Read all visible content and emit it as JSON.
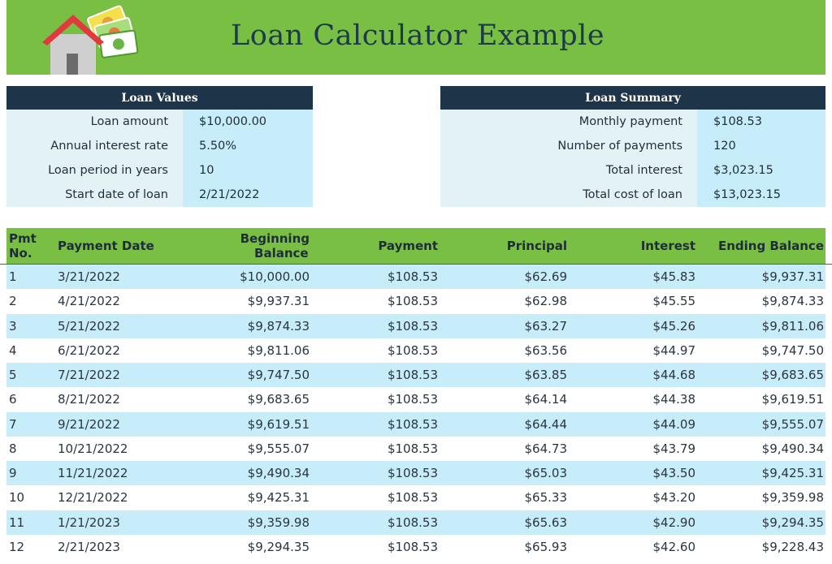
{
  "title": "Loan Calculator Example",
  "colors": {
    "banner_green": "#78bf43",
    "navy_header": "#1e3448",
    "row_blue": "#c7ecfa",
    "label_bg": "#e3f3f5"
  },
  "loan_values": {
    "heading": "Loan Values",
    "rows": [
      {
        "label": "Loan amount",
        "value": "$10,000.00"
      },
      {
        "label": "Annual interest rate",
        "value": "5.50%"
      },
      {
        "label": "Loan period in years",
        "value": "10"
      },
      {
        "label": "Start date of loan",
        "value": "2/21/2022"
      }
    ]
  },
  "loan_summary": {
    "heading": "Loan Summary",
    "rows": [
      {
        "label": "Monthly payment",
        "value": "$108.53"
      },
      {
        "label": "Number of payments",
        "value": "120"
      },
      {
        "label": "Total interest",
        "value": "$3,023.15"
      },
      {
        "label": "Total cost of loan",
        "value": "$13,023.15"
      }
    ]
  },
  "table": {
    "headers": {
      "pmt_no_1": "Pmt",
      "pmt_no_2": "No.",
      "payment_date": "Payment Date",
      "beginning_balance_1": "Beginning",
      "beginning_balance_2": "Balance",
      "payment": "Payment",
      "principal": "Principal",
      "interest": "Interest",
      "ending_balance": "Ending Balance"
    },
    "rows": [
      [
        "1",
        "3/21/2022",
        "$10,000.00",
        "$108.53",
        "$62.69",
        "$45.83",
        "$9,937.31"
      ],
      [
        "2",
        "4/21/2022",
        "$9,937.31",
        "$108.53",
        "$62.98",
        "$45.55",
        "$9,874.33"
      ],
      [
        "3",
        "5/21/2022",
        "$9,874.33",
        "$108.53",
        "$63.27",
        "$45.26",
        "$9,811.06"
      ],
      [
        "4",
        "6/21/2022",
        "$9,811.06",
        "$108.53",
        "$63.56",
        "$44.97",
        "$9,747.50"
      ],
      [
        "5",
        "7/21/2022",
        "$9,747.50",
        "$108.53",
        "$63.85",
        "$44.68",
        "$9,683.65"
      ],
      [
        "6",
        "8/21/2022",
        "$9,683.65",
        "$108.53",
        "$64.14",
        "$44.38",
        "$9,619.51"
      ],
      [
        "7",
        "9/21/2022",
        "$9,619.51",
        "$108.53",
        "$64.44",
        "$44.09",
        "$9,555.07"
      ],
      [
        "8",
        "10/21/2022",
        "$9,555.07",
        "$108.53",
        "$64.73",
        "$43.79",
        "$9,490.34"
      ],
      [
        "9",
        "11/21/2022",
        "$9,490.34",
        "$108.53",
        "$65.03",
        "$43.50",
        "$9,425.31"
      ],
      [
        "10",
        "12/21/2022",
        "$9,425.31",
        "$108.53",
        "$65.33",
        "$43.20",
        "$9,359.98"
      ],
      [
        "11",
        "1/21/2023",
        "$9,359.98",
        "$108.53",
        "$65.63",
        "$42.90",
        "$9,294.35"
      ],
      [
        "12",
        "2/21/2023",
        "$9,294.35",
        "$108.53",
        "$65.93",
        "$42.60",
        "$9,228.43"
      ]
    ]
  },
  "icons": {
    "logo": "house-with-money-icon"
  }
}
